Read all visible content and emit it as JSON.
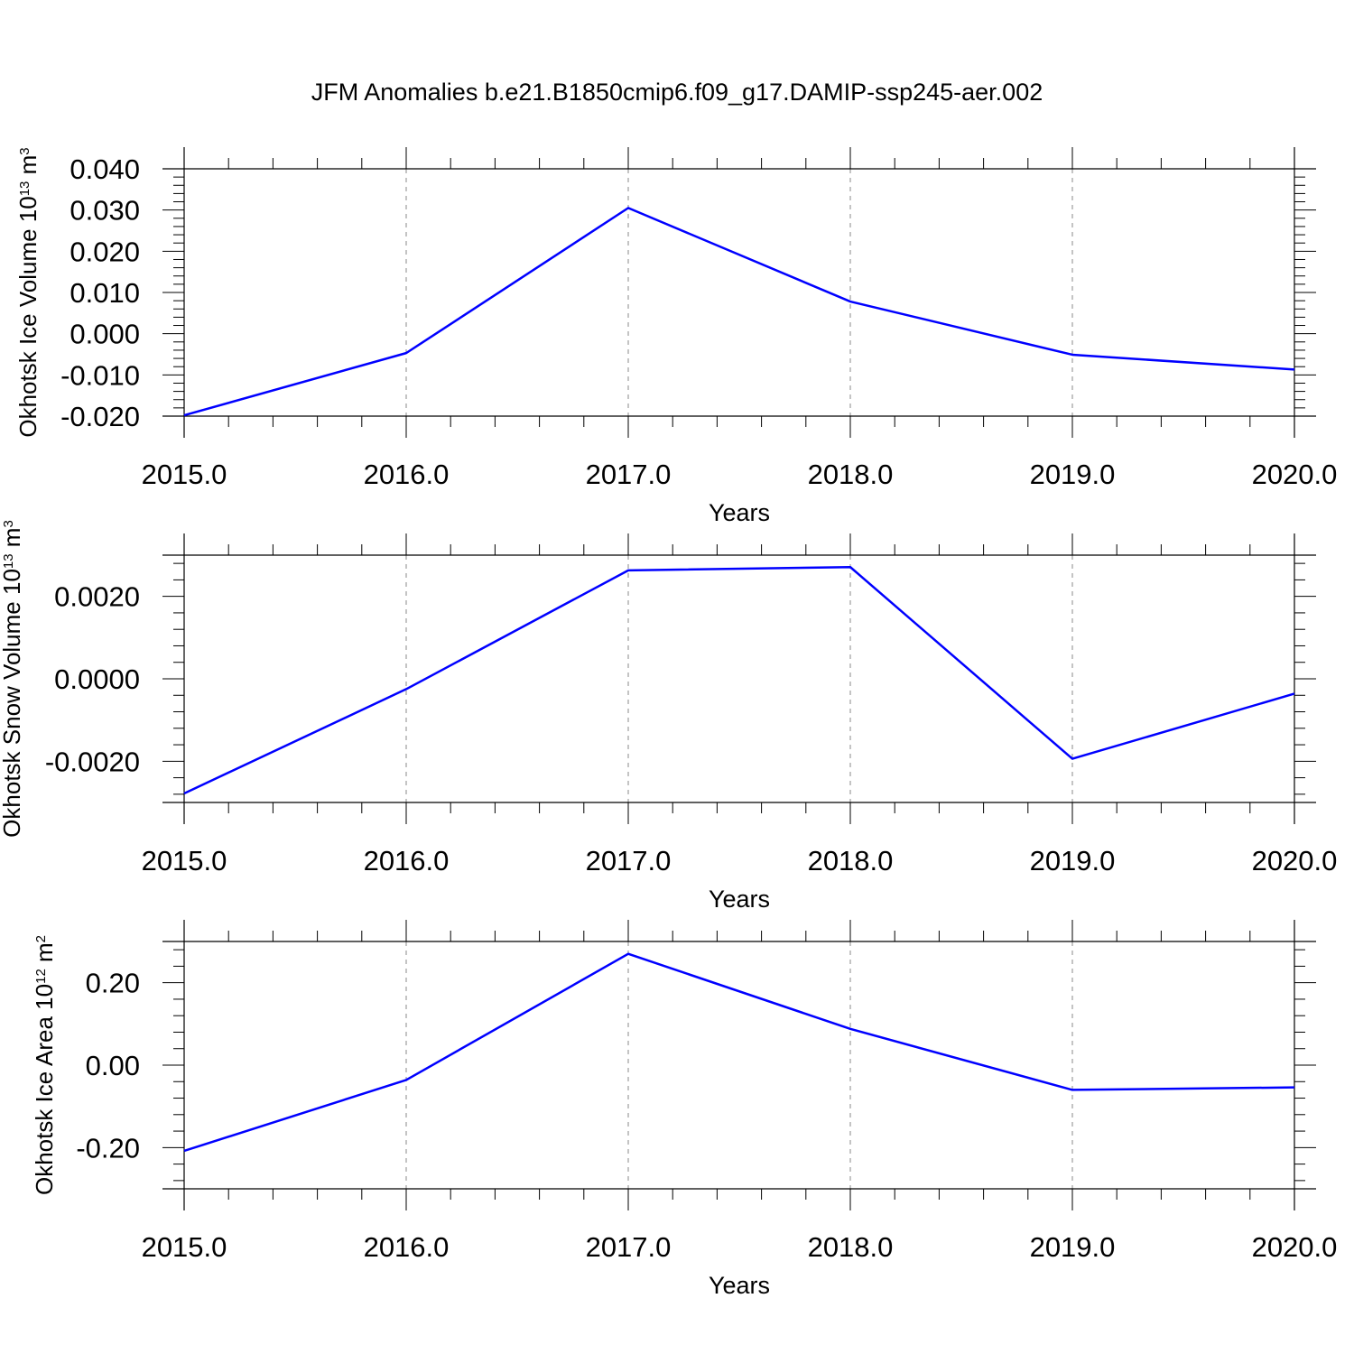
{
  "title": "JFM Anomalies b.e21.B1850cmip6.f09_g17.DAMIP-ssp245-aer.002",
  "colors": {
    "series": "#0000ff",
    "axis": "#000000",
    "grid": "#888888"
  },
  "chart_data": [
    {
      "type": "line",
      "xlabel": "Years",
      "ylabel": {
        "text": "Okhotsk Ice Volume 10",
        "sup": "13",
        "unit": " m",
        "unit_sup": "3"
      },
      "x": [
        2015,
        2016,
        2017,
        2018,
        2019,
        2020
      ],
      "series": [
        {
          "values": [
            -0.0198,
            -0.0047,
            0.0305,
            0.0078,
            -0.0051,
            -0.0087
          ]
        }
      ],
      "xlim": [
        2015,
        2020
      ],
      "ylim": [
        -0.02,
        0.04
      ],
      "yticks": [
        -0.02,
        -0.01,
        0.0,
        0.01,
        0.02,
        0.03,
        0.04
      ],
      "ytick_labels": [
        "-0.020",
        "-0.010",
        "0.000",
        "0.010",
        "0.020",
        "0.030",
        "0.040"
      ],
      "xticks": [
        2015,
        2016,
        2017,
        2018,
        2019,
        2020
      ],
      "xtick_labels": [
        "2015.0",
        "2016.0",
        "2017.0",
        "2018.0",
        "2019.0",
        "2020.0"
      ],
      "grid": "vertical dashed"
    },
    {
      "type": "line",
      "xlabel": "Years",
      "ylabel": {
        "text": "Okhotsk Snow Volume 10",
        "sup": "13",
        "unit": " m",
        "unit_sup": "3"
      },
      "x": [
        2015,
        2016,
        2017,
        2018,
        2019,
        2020
      ],
      "series": [
        {
          "values": [
            -0.00278,
            -0.00025,
            0.00263,
            0.00271,
            -0.00194,
            -0.00036
          ]
        }
      ],
      "xlim": [
        2015,
        2020
      ],
      "ylim": [
        -0.003,
        0.003
      ],
      "yticks": [
        -0.002,
        0.0,
        0.002
      ],
      "ytick_labels": [
        "-0.0020",
        "0.0000",
        "0.0020"
      ],
      "xticks": [
        2015,
        2016,
        2017,
        2018,
        2019,
        2020
      ],
      "xtick_labels": [
        "2015.0",
        "2016.0",
        "2017.0",
        "2018.0",
        "2019.0",
        "2020.0"
      ],
      "grid": "vertical dashed"
    },
    {
      "type": "line",
      "xlabel": "Years",
      "ylabel": {
        "text": "Okhotsk Ice Area 10",
        "sup": "12",
        "unit": " m",
        "unit_sup": "2"
      },
      "x": [
        2015,
        2016,
        2017,
        2018,
        2019,
        2020
      ],
      "series": [
        {
          "values": [
            -0.208,
            -0.036,
            0.27,
            0.088,
            -0.06,
            -0.054
          ]
        }
      ],
      "xlim": [
        2015,
        2020
      ],
      "ylim": [
        -0.3,
        0.3
      ],
      "yticks": [
        -0.2,
        0.0,
        0.2
      ],
      "ytick_labels": [
        "-0.20",
        "0.00",
        "0.20"
      ],
      "xticks": [
        2015,
        2016,
        2017,
        2018,
        2019,
        2020
      ],
      "xtick_labels": [
        "2015.0",
        "2016.0",
        "2017.0",
        "2018.0",
        "2019.0",
        "2020.0"
      ],
      "grid": "vertical dashed"
    }
  ]
}
